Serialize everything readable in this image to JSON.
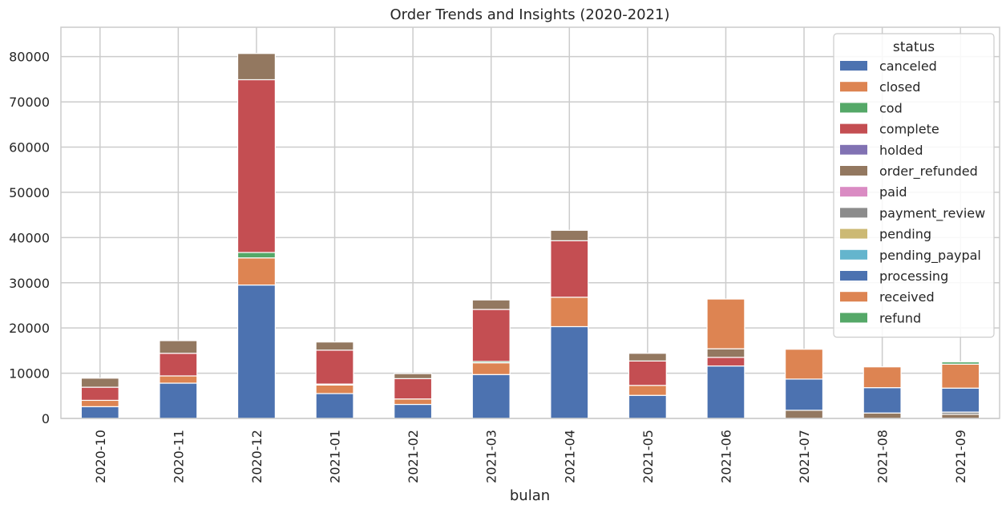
{
  "chart_data": {
    "type": "bar",
    "stacked": true,
    "title": "Order Trends and Insights (2020-2021)",
    "xlabel": "bulan",
    "ylabel": "",
    "ylim": [
      0,
      86500
    ],
    "yticks": [
      0,
      10000,
      20000,
      30000,
      40000,
      50000,
      60000,
      70000,
      80000
    ],
    "grid": true,
    "legend": {
      "title": "status",
      "placement": "top-right"
    },
    "categories": [
      "2020-10",
      "2020-11",
      "2020-12",
      "2021-01",
      "2021-02",
      "2021-03",
      "2021-04",
      "2021-05",
      "2021-06",
      "2021-07",
      "2021-08",
      "2021-09"
    ],
    "series": [
      {
        "name": "canceled",
        "color": "#4c72b0",
        "values": [
          2600,
          7800,
          29500,
          5500,
          3100,
          9700,
          20300,
          5100,
          11600,
          0,
          0,
          0
        ]
      },
      {
        "name": "closed",
        "color": "#dd8452",
        "values": [
          1400,
          1600,
          6000,
          1900,
          1200,
          2600,
          6500,
          2200,
          0,
          0,
          0,
          0
        ]
      },
      {
        "name": "cod",
        "color": "#55a868",
        "values": [
          0,
          0,
          1200,
          200,
          0,
          300,
          0,
          0,
          0,
          0,
          0,
          0
        ]
      },
      {
        "name": "complete",
        "color": "#c44e52",
        "values": [
          2900,
          5000,
          38200,
          7500,
          4500,
          11500,
          12500,
          5400,
          1900,
          0,
          0,
          0
        ]
      },
      {
        "name": "holded",
        "color": "#8172b3",
        "values": [
          0,
          0,
          0,
          0,
          0,
          0,
          0,
          0,
          0,
          0,
          0,
          0
        ]
      },
      {
        "name": "order_refunded",
        "color": "#937860",
        "values": [
          2000,
          2800,
          5800,
          1800,
          1100,
          2100,
          2300,
          1700,
          1900,
          1800,
          1200,
          900
        ]
      },
      {
        "name": "paid",
        "color": "#da8bc3",
        "values": [
          0,
          0,
          0,
          0,
          0,
          0,
          0,
          0,
          0,
          0,
          0,
          0
        ]
      },
      {
        "name": "payment_review",
        "color": "#8c8c8c",
        "values": [
          0,
          0,
          0,
          0,
          0,
          0,
          0,
          0,
          0,
          0,
          0,
          500
        ]
      },
      {
        "name": "pending",
        "color": "#ccb974",
        "values": [
          0,
          0,
          0,
          0,
          0,
          0,
          0,
          0,
          0,
          0,
          0,
          0
        ]
      },
      {
        "name": "pending_paypal",
        "color": "#64b5cd",
        "values": [
          0,
          0,
          0,
          0,
          0,
          0,
          0,
          0,
          0,
          0,
          0,
          0
        ]
      },
      {
        "name": "processing",
        "color": "#4c72b0",
        "values": [
          0,
          0,
          0,
          0,
          0,
          0,
          0,
          0,
          0,
          6900,
          5600,
          5300
        ]
      },
      {
        "name": "received",
        "color": "#dd8452",
        "values": [
          0,
          0,
          0,
          0,
          0,
          0,
          0,
          0,
          11000,
          6600,
          4600,
          5300
        ]
      },
      {
        "name": "refund",
        "color": "#55a868",
        "values": [
          0,
          0,
          0,
          0,
          0,
          0,
          0,
          0,
          0,
          0,
          0,
          500
        ]
      }
    ]
  }
}
